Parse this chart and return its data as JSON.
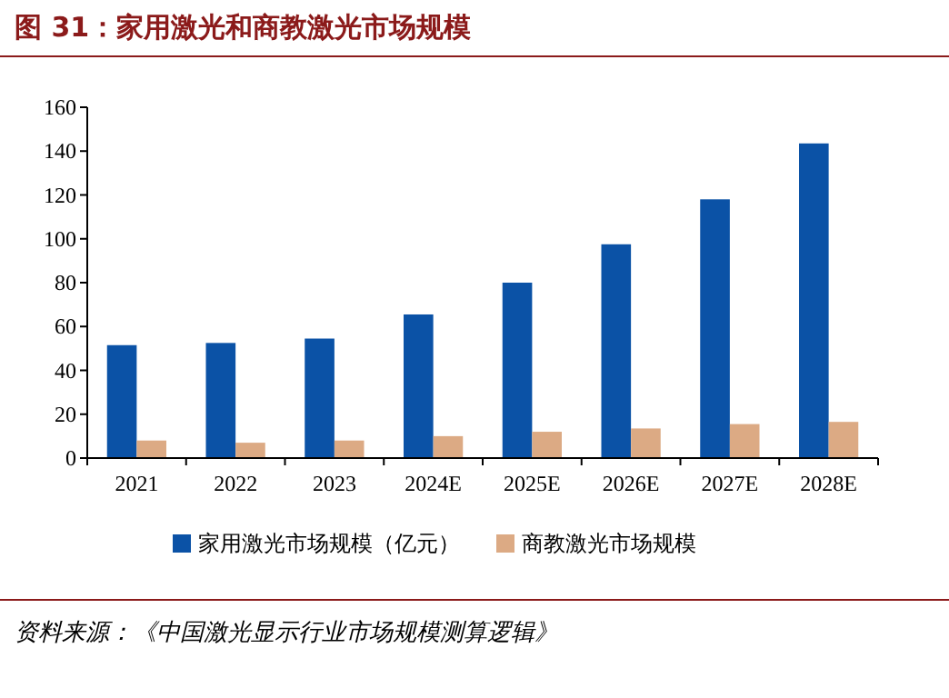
{
  "chart_data": {
    "type": "bar",
    "title": "图 31：家用激光和商教激光市场规模",
    "categories": [
      "2021",
      "2022",
      "2023",
      "2024E",
      "2025E",
      "2026E",
      "2027E",
      "2028E"
    ],
    "series": [
      {
        "name": "家用激光市场规模（亿元）",
        "color": "#0b52a6",
        "values": [
          51.5,
          52.5,
          54.5,
          65.5,
          80,
          97.5,
          118,
          143.5
        ]
      },
      {
        "name": "商教激光市场规模",
        "color": "#dcaa84",
        "values": [
          8,
          7,
          8,
          10,
          12,
          13.5,
          15.5,
          16.5
        ]
      }
    ],
    "ylim": [
      0,
      160
    ],
    "yticks": [
      0,
      20,
      40,
      60,
      80,
      100,
      120,
      140,
      160
    ],
    "grid": false,
    "legend": "bottom",
    "annotations": [
      "资料来源：《中国激光显示行业市场规模测算逻辑》"
    ]
  }
}
